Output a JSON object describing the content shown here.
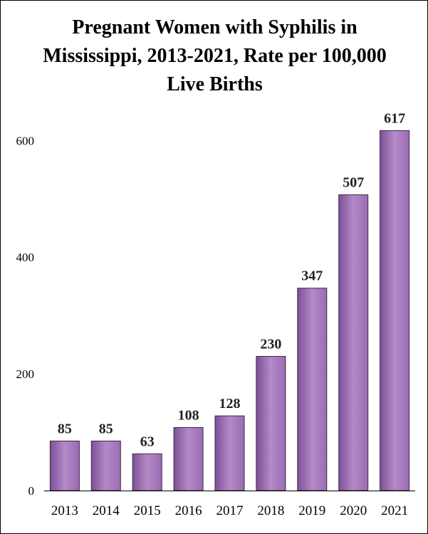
{
  "chart_data": {
    "type": "bar",
    "title_lines": [
      "Pregnant Women with Syphilis in",
      "Mississippi, 2013-2021, Rate per 100,000",
      "Live Births"
    ],
    "categories": [
      "2013",
      "2014",
      "2015",
      "2016",
      "2017",
      "2018",
      "2019",
      "2020",
      "2021"
    ],
    "values": [
      85,
      85,
      63,
      108,
      128,
      230,
      347,
      507,
      617
    ],
    "xlabel": "",
    "ylabel": "",
    "ylim": [
      0,
      670
    ],
    "yticks": [
      0,
      200,
      400,
      600
    ],
    "grid": false,
    "legend": "none",
    "bar_color": "#9b6bb3",
    "bar_color_light": "#b48ac8",
    "bar_color_dark": "#7e4f98",
    "bar_edge_color": "#3a2a44"
  }
}
